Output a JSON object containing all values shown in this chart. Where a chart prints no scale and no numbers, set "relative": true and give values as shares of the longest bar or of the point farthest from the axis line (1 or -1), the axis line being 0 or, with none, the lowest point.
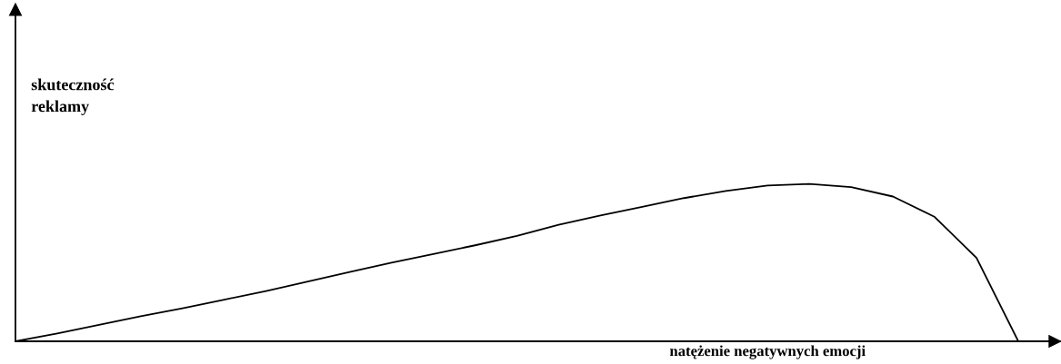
{
  "chart_data": {
    "type": "line",
    "relative": true,
    "xlabel": "natężenie negatywnych emocji",
    "ylabel": "skuteczność\nreklamy",
    "categories": [
      null,
      null,
      null,
      null,
      null,
      null,
      null,
      null,
      null,
      null,
      null,
      null,
      null,
      null,
      null,
      null,
      null,
      null,
      null,
      null,
      null,
      null,
      null,
      null,
      null,
      null
    ],
    "series": [
      {
        "color": "#000000",
        "values": [
          0,
          0.05,
          0.105,
          0.16,
          0.21,
          0.265,
          0.32,
          0.38,
          0.44,
          0.5,
          0.555,
          0.61,
          0.67,
          0.74,
          0.8,
          0.855,
          0.91,
          0.955,
          0.99,
          1.0,
          0.98,
          0.92,
          0.79,
          0.53,
          0,
          null
        ]
      }
    ],
    "marker": "none",
    "line_style": "solid",
    "legend": false
  }
}
